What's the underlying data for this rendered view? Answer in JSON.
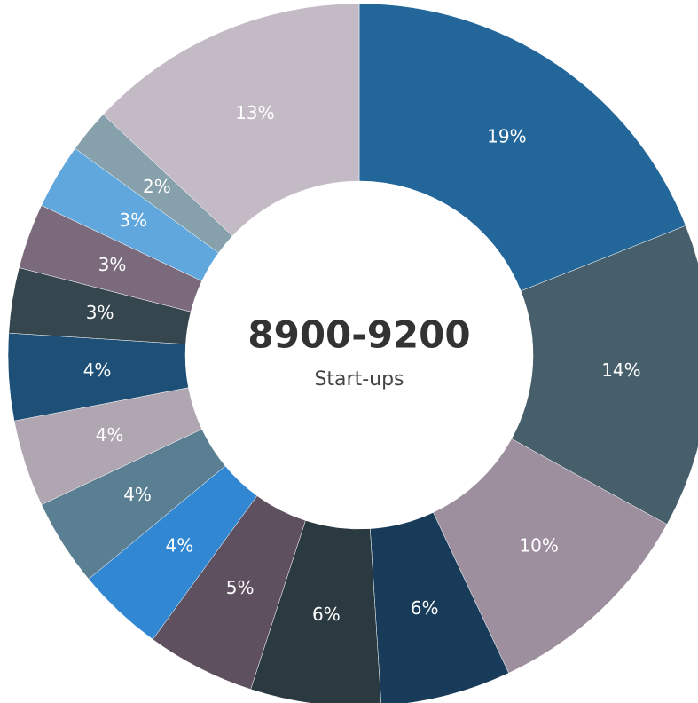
{
  "chart_data": {
    "type": "donut",
    "center_title": "8900-9200",
    "center_subtitle": "Start-ups",
    "values": [
      19,
      14,
      10,
      6,
      6,
      5,
      4,
      4,
      4,
      4,
      3,
      3,
      3,
      2,
      13
    ],
    "value_labels": [
      "19%",
      "14%",
      "10%",
      "6%",
      "6%",
      "5%",
      "4%",
      "4%",
      "4%",
      "4%",
      "3%",
      "3%",
      "3%",
      "2%",
      "13%"
    ],
    "colors": [
      "#23679a",
      "#475f6b",
      "#9e8f9f",
      "#173b59",
      "#2b3a41",
      "#5f5060",
      "#3187d1",
      "#5b7f92",
      "#b0a6b1",
      "#1d4f77",
      "#36464f",
      "#7a6a7c",
      "#5fa7dd",
      "#86a1ab",
      "#c4bac6"
    ]
  }
}
